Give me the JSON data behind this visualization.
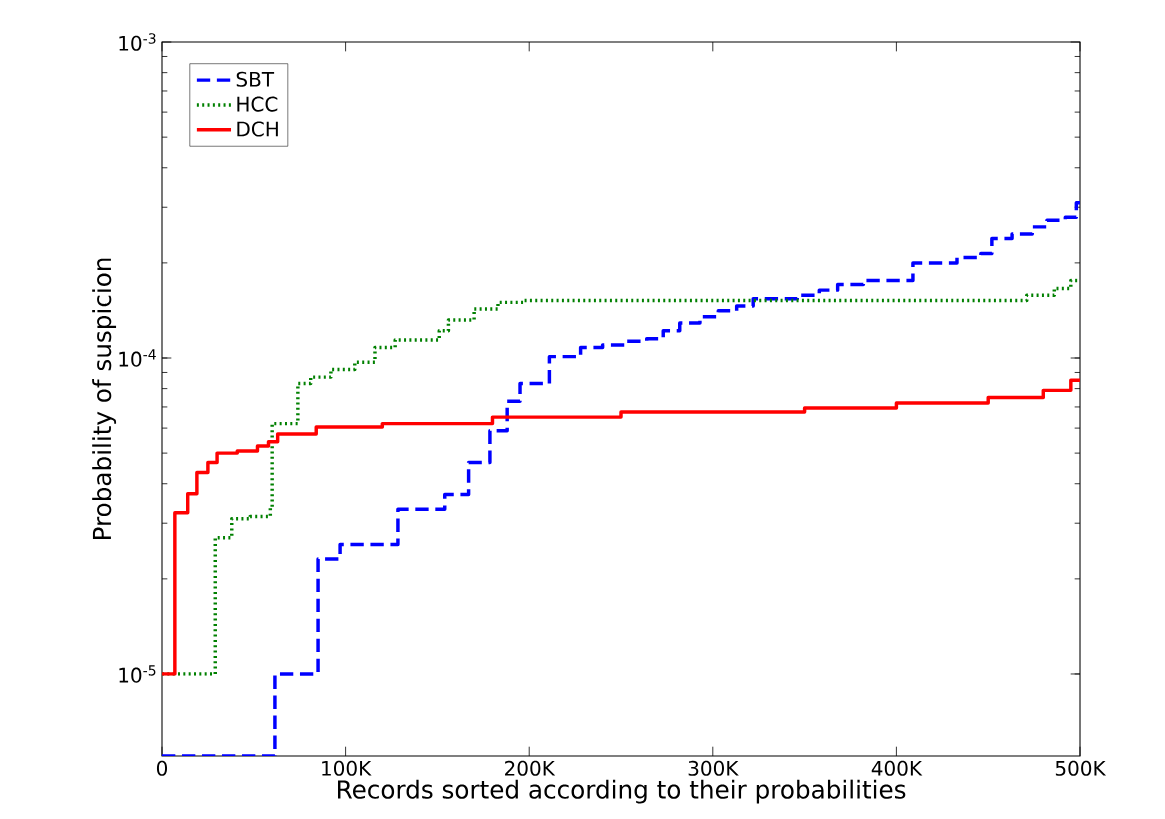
{
  "chart_data": {
    "type": "step",
    "xlabel": "Records sorted according to their probabilities",
    "ylabel": "Probability of suspicion",
    "log": "y",
    "legend": "top left",
    "xlim": [
      0,
      500000
    ],
    "ylim": [
      5.5e-06,
      0.001
    ],
    "xticks": [
      0,
      {
        "value": 100000,
        "label": "100K"
      },
      {
        "value": 200000,
        "label": "200K"
      },
      {
        "value": 300000,
        "label": "300K"
      },
      {
        "value": 400000,
        "label": "400K"
      },
      {
        "value": 500000,
        "label": "500K"
      }
    ],
    "yticks": [
      {
        "value": 1e-05,
        "label": "10$^{-5}$"
      },
      {
        "value": 0.0001,
        "label": "10$^{-4}$"
      },
      {
        "value": 0.001,
        "label": "10$^{-3}$"
      }
    ],
    "series": [
      {
        "name": "SBT",
        "color": "#0000ff",
        "line_style": "dashed",
        "x": [
          0,
          61500,
          85000,
          97000,
          128500,
          154000,
          167000,
          178600,
          188000,
          195000,
          211000,
          228000,
          240000,
          253000,
          264000,
          273000,
          282000,
          293000,
          303000,
          313000,
          322000,
          346000,
          358000,
          368000,
          382000,
          409000,
          433000,
          446000,
          452000,
          463000,
          474000,
          482000,
          492000,
          498000,
          500000
        ],
        "values": [
          5.5e-06,
          1e-05,
          2.31e-05,
          2.57e-05,
          3.32e-05,
          3.7e-05,
          4.67e-05,
          5.89e-05,
          7.3e-05,
          8.3e-05,
          0.000101,
          0.000108,
          0.00011,
          0.000113,
          0.000115,
          0.000122,
          0.000129,
          0.000135,
          0.000141,
          0.000146,
          0.000154,
          0.000158,
          0.000164,
          0.000171,
          0.000176,
          0.0002,
          0.000208,
          0.000214,
          0.000239,
          0.000247,
          0.00026,
          0.000273,
          0.000279,
          0.00031,
          0.00031
        ]
      },
      {
        "name": "HCC",
        "color": "#008000",
        "line_style": "dotted",
        "x": [
          0,
          29000,
          38000,
          48000,
          59000,
          60000,
          74000,
          81000,
          92000,
          105000,
          116000,
          127000,
          151000,
          156000,
          170000,
          183000,
          197000,
          471000,
          486000,
          495000,
          500000
        ],
        "values": [
          1e-05,
          2.7e-05,
          3.1e-05,
          3.15e-05,
          3.37e-05,
          6.2e-05,
          8.3e-05,
          8.7e-05,
          9.2e-05,
          9.7e-05,
          0.000108,
          0.000114,
          0.000122,
          0.000132,
          0.000143,
          0.00015,
          0.000152,
          0.000158,
          0.000166,
          0.000176,
          0.000176
        ]
      },
      {
        "name": "DCH",
        "color": "#ff0000",
        "line_style": "solid",
        "x": [
          0,
          7000,
          14000,
          19000,
          25000,
          30000,
          41000,
          52000,
          58000,
          63000,
          84000,
          120000,
          180000,
          250000,
          350000,
          400000,
          450000,
          480000,
          495000,
          500000
        ],
        "values": [
          1e-05,
          3.24e-05,
          3.72e-05,
          4.34e-05,
          4.67e-05,
          5e-05,
          5.08e-05,
          5.27e-05,
          5.43e-05,
          5.75e-05,
          6.05e-05,
          6.2e-05,
          6.5e-05,
          6.75e-05,
          6.95e-05,
          7.2e-05,
          7.5e-05,
          7.9e-05,
          8.5e-05,
          8.5e-05
        ]
      }
    ]
  }
}
